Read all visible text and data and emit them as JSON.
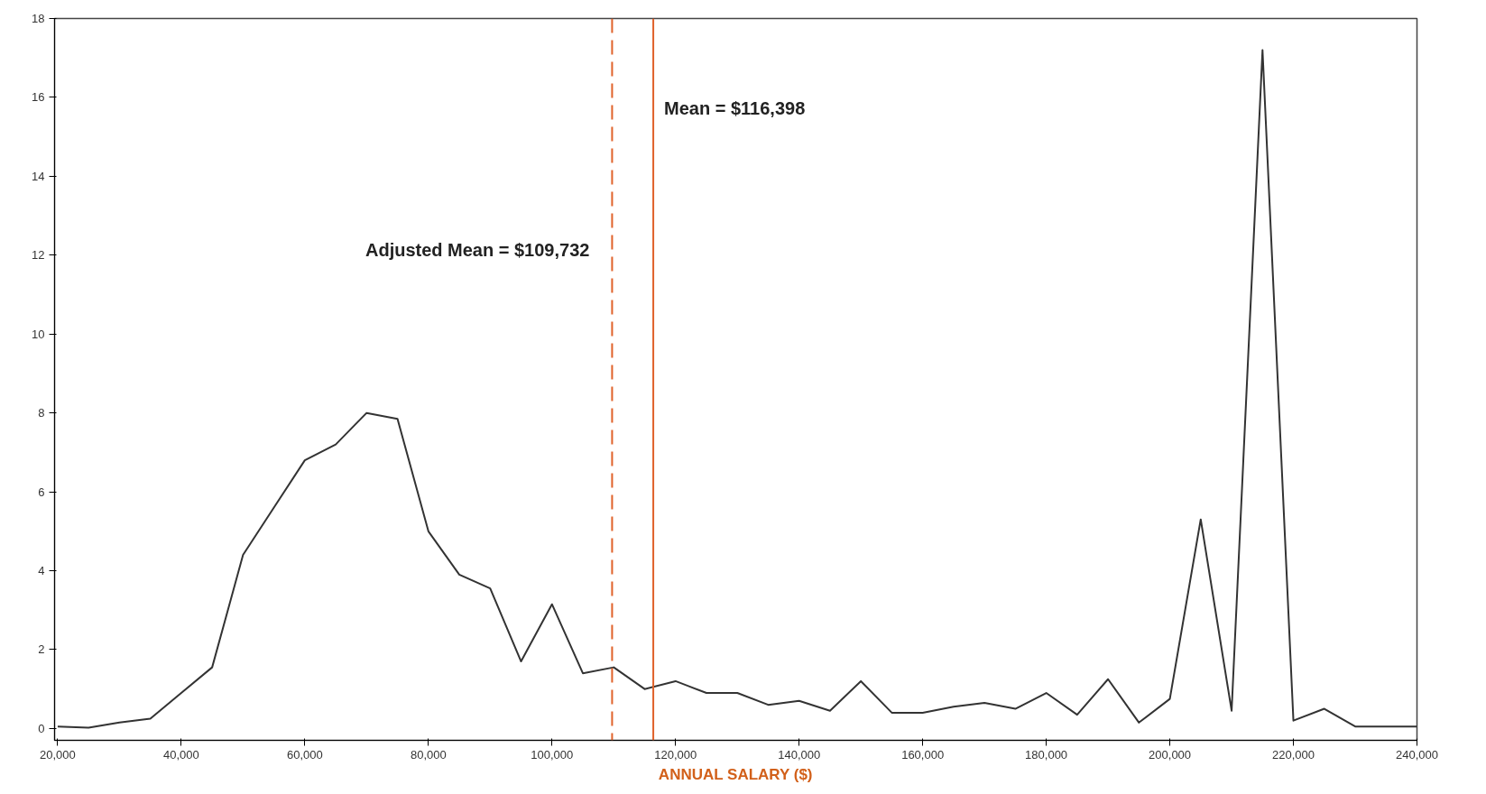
{
  "chart_data": {
    "type": "line",
    "xlabel": "ANNUAL SALARY ($)",
    "x": [
      20000,
      25000,
      30000,
      35000,
      40000,
      45000,
      50000,
      55000,
      60000,
      65000,
      70000,
      75000,
      80000,
      85000,
      90000,
      95000,
      100000,
      105000,
      110000,
      115000,
      120000,
      125000,
      130000,
      135000,
      140000,
      145000,
      150000,
      155000,
      160000,
      165000,
      170000,
      175000,
      180000,
      185000,
      190000,
      195000,
      200000,
      205000,
      210000,
      215000,
      220000,
      225000,
      230000,
      235000,
      240000
    ],
    "series": [
      {
        "color": "#333333",
        "values": [
          0.05,
          0.02,
          0.15,
          0.25,
          0.9,
          1.55,
          4.4,
          5.6,
          6.8,
          7.2,
          8.0,
          7.85,
          5.0,
          3.9,
          3.55,
          1.7,
          3.15,
          1.4,
          1.55,
          1.0,
          1.2,
          0.9,
          0.9,
          0.6,
          0.7,
          0.45,
          1.2,
          0.4,
          0.4,
          0.55,
          0.65,
          0.5,
          0.9,
          0.35,
          1.25,
          0.15,
          0.75,
          5.3,
          0.45,
          17.2,
          0.2,
          0.5,
          0.05,
          0.05,
          0.05
        ]
      }
    ],
    "xlim": [
      19500,
      240000
    ],
    "ylim": [
      -0.3,
      18
    ],
    "xticks": [
      {
        "value": 20000,
        "label": "20,000"
      },
      {
        "value": 40000,
        "label": "40,000"
      },
      {
        "value": 60000,
        "label": "60,000"
      },
      {
        "value": 80000,
        "label": "80,000"
      },
      {
        "value": 100000,
        "label": "100,000"
      },
      {
        "value": 120000,
        "label": "120,000"
      },
      {
        "value": 140000,
        "label": "140,000"
      },
      {
        "value": 160000,
        "label": "160,000"
      },
      {
        "value": 180000,
        "label": "180,000"
      },
      {
        "value": 200000,
        "label": "200,000"
      },
      {
        "value": 220000,
        "label": "220,000"
      },
      {
        "value": 240000,
        "label": "240,000"
      }
    ],
    "yticks": [
      0,
      2,
      4,
      6,
      8,
      10,
      12,
      14,
      16,
      18
    ],
    "ref_lines": [
      {
        "axis": "x",
        "value": 109732,
        "label": "Adjusted Mean = $109,732",
        "color": "#e0622a",
        "line_style": "dashed"
      },
      {
        "axis": "x",
        "value": 116398,
        "label": "Mean = $116,398",
        "color": "#e0622a",
        "line_style": "solid"
      }
    ],
    "grid": false,
    "marker": "none",
    "line_style": "solid"
  }
}
